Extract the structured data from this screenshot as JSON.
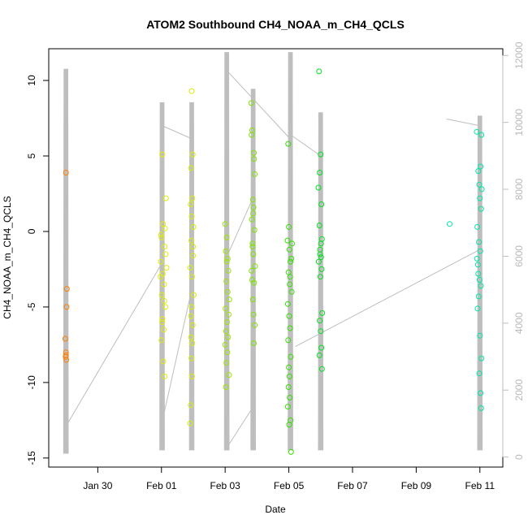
{
  "chart_data": {
    "type": "scatter",
    "title": "ATOM2 Southbound CH4_NOAA_m_CH4_QCLS",
    "xlabel": "Date",
    "ylabel": "CH4_NOAA_m_CH4_QCLS",
    "x_unit": "days since Jan 28 00:00",
    "xlim": [
      0.46,
      14.72
    ],
    "ylim": [
      -15.6,
      12.1
    ],
    "x_ticks": [
      {
        "value": 2,
        "label": "Jan 30"
      },
      {
        "value": 4,
        "label": "Feb 01"
      },
      {
        "value": 6,
        "label": "Feb 03"
      },
      {
        "value": 8,
        "label": "Feb 05"
      },
      {
        "value": 10,
        "label": "Feb 07"
      },
      {
        "value": 12,
        "label": "Feb 09"
      },
      {
        "value": 14,
        "label": "Feb 11"
      }
    ],
    "y_ticks": [
      -15,
      -10,
      -5,
      0,
      5,
      10
    ],
    "y2_ticks": [
      0,
      2000,
      4000,
      6000,
      8000,
      10000,
      12000
    ],
    "y2lim": [
      -300,
      12200
    ],
    "altitude_color": "#bebebe",
    "grid": false,
    "legend": "none",
    "series": [
      {
        "color": "#ff7f00",
        "points": [
          [
            1.0,
            3.9
          ],
          [
            1.03,
            -3.8
          ],
          [
            1.02,
            -5.0
          ],
          [
            0.98,
            -7.1
          ],
          [
            1.0,
            -8.0
          ],
          [
            0.99,
            -8.3
          ],
          [
            1.01,
            -8.5
          ],
          [
            1.0,
            -8.2
          ]
        ]
      },
      {
        "color": "#e0ee00",
        "points": [
          [
            4.02,
            5.1
          ],
          [
            4.05,
            0.5
          ],
          [
            4.0,
            -0.4
          ],
          [
            4.1,
            -1.0
          ],
          [
            3.98,
            -2.0
          ],
          [
            4.04,
            -2.8
          ],
          [
            4.08,
            -3.5
          ],
          [
            4.01,
            -4.2
          ],
          [
            4.12,
            -5.0
          ],
          [
            4.03,
            -5.8
          ],
          [
            4.07,
            -6.5
          ],
          [
            4.0,
            -7.2
          ],
          [
            4.06,
            -8.6
          ],
          [
            4.1,
            -9.6
          ],
          [
            3.99,
            -0.2
          ],
          [
            4.14,
            2.2
          ],
          [
            4.16,
            -2.4
          ],
          [
            4.02,
            -6.0
          ],
          [
            4.09,
            -4.6
          ],
          [
            4.13,
            -1.5
          ],
          [
            3.97,
            -3.0
          ],
          [
            4.11,
            0.2
          ]
        ]
      },
      {
        "color": "#d8f000",
        "points": [
          [
            4.95,
            9.3
          ],
          [
            4.98,
            5.1
          ],
          [
            4.93,
            4.2
          ],
          [
            4.97,
            2.2
          ],
          [
            4.92,
            1.8
          ],
          [
            5.0,
            0.3
          ],
          [
            4.94,
            -0.6
          ],
          [
            4.99,
            -1.6
          ],
          [
            4.91,
            -2.4
          ],
          [
            4.96,
            -3.0
          ],
          [
            5.01,
            -4.2
          ],
          [
            4.95,
            -5.0
          ],
          [
            4.93,
            -5.6
          ],
          [
            4.98,
            -6.2
          ],
          [
            4.97,
            -7.4
          ],
          [
            4.94,
            -8.4
          ],
          [
            4.96,
            -9.6
          ],
          [
            4.92,
            -11.5
          ],
          [
            4.9,
            -12.7
          ],
          [
            4.99,
            -1.0
          ],
          [
            4.95,
            1.0
          ],
          [
            4.93,
            -7.0
          ]
        ]
      },
      {
        "color": "#9ae600",
        "points": [
          [
            6.0,
            0.5
          ],
          [
            6.05,
            -0.4
          ],
          [
            6.02,
            -1.3
          ],
          [
            6.1,
            -2.6
          ],
          [
            6.04,
            -3.3
          ],
          [
            6.08,
            -4.0
          ],
          [
            6.01,
            -5.1
          ],
          [
            6.06,
            -6.0
          ],
          [
            6.03,
            -6.6
          ],
          [
            6.09,
            -7.0
          ],
          [
            6.07,
            -8.0
          ],
          [
            6.04,
            -8.7
          ],
          [
            6.12,
            -9.5
          ],
          [
            6.02,
            -10.3
          ],
          [
            6.11,
            -5.5
          ],
          [
            6.05,
            -2.0
          ],
          [
            6.0,
            -7.5
          ],
          [
            6.13,
            -4.5
          ],
          [
            6.08,
            -1.8
          ]
        ]
      },
      {
        "color": "#7de400",
        "points": [
          [
            6.82,
            8.5
          ],
          [
            6.85,
            6.7
          ],
          [
            6.83,
            6.4
          ],
          [
            6.9,
            5.2
          ],
          [
            6.91,
            4.8
          ],
          [
            6.93,
            3.8
          ],
          [
            6.87,
            2.1
          ],
          [
            6.89,
            1.6
          ],
          [
            6.84,
            0.8
          ],
          [
            6.92,
            0.1
          ],
          [
            6.86,
            -0.8
          ],
          [
            6.88,
            -1.5
          ],
          [
            6.94,
            -2.3
          ],
          [
            6.85,
            -3.2
          ],
          [
            6.91,
            -3.4
          ],
          [
            6.87,
            -4.5
          ],
          [
            6.89,
            -5.5
          ],
          [
            6.93,
            -6.2
          ],
          [
            6.9,
            -7.4
          ],
          [
            6.83,
            -2.6
          ],
          [
            6.88,
            1.2
          ],
          [
            6.86,
            -1.0
          ]
        ]
      },
      {
        "color": "#33e000",
        "points": [
          [
            7.98,
            5.8
          ],
          [
            8.0,
            0.3
          ],
          [
            7.96,
            -0.6
          ],
          [
            8.02,
            -1.2
          ],
          [
            8.05,
            -2.0
          ],
          [
            7.99,
            -2.7
          ],
          [
            8.03,
            -3.5
          ],
          [
            7.97,
            -4.8
          ],
          [
            8.01,
            -5.6
          ],
          [
            8.04,
            -6.4
          ],
          [
            7.98,
            -7.2
          ],
          [
            8.06,
            -8.3
          ],
          [
            8.0,
            -9.0
          ],
          [
            8.02,
            -9.6
          ],
          [
            7.99,
            -10.3
          ],
          [
            8.03,
            -11.0
          ],
          [
            7.97,
            -11.6
          ],
          [
            8.05,
            -12.5
          ],
          [
            8.01,
            -12.8
          ],
          [
            8.07,
            -14.6
          ],
          [
            8.1,
            -0.8
          ],
          [
            8.08,
            -1.8
          ],
          [
            8.09,
            -4.0
          ],
          [
            8.04,
            -3.0
          ]
        ]
      },
      {
        "color": "#00e020",
        "points": [
          [
            8.95,
            10.6
          ],
          [
            9.0,
            5.1
          ],
          [
            8.97,
            3.9
          ],
          [
            8.93,
            2.9
          ],
          [
            9.02,
            1.8
          ],
          [
            8.96,
            0.4
          ],
          [
            9.04,
            -0.5
          ],
          [
            8.98,
            -1.2
          ],
          [
            9.01,
            -1.7
          ],
          [
            8.94,
            -2.0
          ],
          [
            9.03,
            -2.5
          ],
          [
            8.99,
            -3.0
          ],
          [
            9.05,
            -5.4
          ],
          [
            8.97,
            -5.9
          ],
          [
            9.0,
            -6.6
          ],
          [
            9.02,
            -7.7
          ],
          [
            8.96,
            -8.2
          ],
          [
            9.04,
            -9.1
          ],
          [
            8.98,
            -1.5
          ],
          [
            9.01,
            -0.8
          ]
        ]
      },
      {
        "color": "#00e5a8",
        "points": [
          [
            13.05,
            0.5
          ],
          [
            13.9,
            6.6
          ],
          [
            14.05,
            6.4
          ],
          [
            13.95,
            4.0
          ],
          [
            14.02,
            4.3
          ],
          [
            13.98,
            3.1
          ],
          [
            14.0,
            2.2
          ],
          [
            14.04,
            1.5
          ],
          [
            13.92,
            0.3
          ],
          [
            13.97,
            -0.7
          ],
          [
            14.01,
            -1.3
          ],
          [
            13.94,
            -2.2
          ],
          [
            13.99,
            -3.2
          ],
          [
            14.03,
            -3.6
          ],
          [
            13.96,
            -4.3
          ],
          [
            13.93,
            -5.1
          ],
          [
            14.0,
            -6.9
          ],
          [
            14.05,
            -8.4
          ],
          [
            13.98,
            -9.4
          ],
          [
            14.02,
            -10.7
          ],
          [
            14.04,
            -11.7
          ],
          [
            13.91,
            -1.8
          ],
          [
            14.06,
            2.8
          ],
          [
            13.95,
            -2.8
          ]
        ]
      }
    ],
    "altitude_profiles": [
      {
        "x": 1.0,
        "min": 100,
        "max": 11600
      },
      {
        "x": 4.02,
        "min": 200,
        "max": 10600
      },
      {
        "x": 4.95,
        "min": 200,
        "max": 10600
      },
      {
        "x": 6.05,
        "min": 200,
        "max": 12100
      },
      {
        "x": 6.88,
        "min": 200,
        "max": 11000
      },
      {
        "x": 8.05,
        "min": 200,
        "max": 12100
      },
      {
        "x": 9.0,
        "min": 200,
        "max": 10300
      },
      {
        "x": 14.0,
        "min": 200,
        "max": 10200
      }
    ],
    "altitude_transits": [
      [
        [
          1.05,
          1000
        ],
        [
          4.02,
          5800
        ]
      ],
      [
        [
          4.08,
          1300
        ],
        [
          4.95,
          5000
        ]
      ],
      [
        [
          4.98,
          9500
        ],
        [
          4.02,
          9900
        ]
      ],
      [
        [
          6.0,
          200
        ],
        [
          6.88,
          1500
        ]
      ],
      [
        [
          6.1,
          11500
        ],
        [
          8.05,
          9500
        ]
      ],
      [
        [
          6.06,
          6000
        ],
        [
          6.9,
          7800
        ]
      ],
      [
        [
          8.1,
          9600
        ],
        [
          9.0,
          9000
        ]
      ],
      [
        [
          8.2,
          3300
        ],
        [
          14.0,
          6200
        ]
      ],
      [
        [
          12.95,
          10100
        ],
        [
          14.0,
          9900
        ]
      ]
    ]
  }
}
